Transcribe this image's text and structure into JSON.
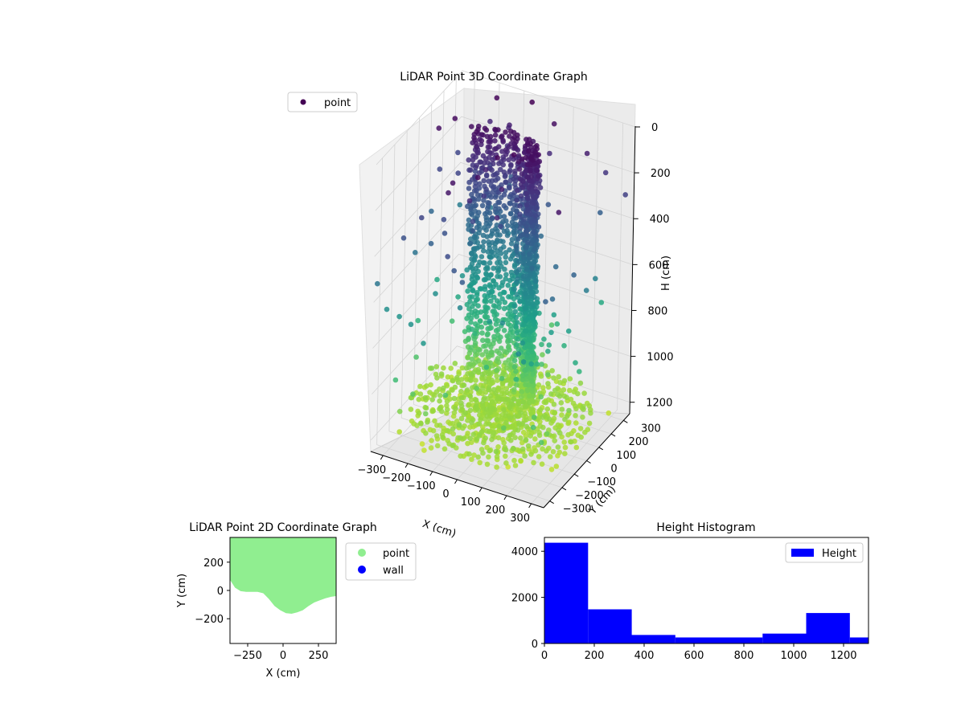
{
  "chart_data": [
    {
      "type": "scatter",
      "title": "LiDAR Point 3D Coordinate Graph",
      "xlabel": "X (cm)",
      "ylabel": "Y (cm)",
      "zlabel": "H (cm)",
      "x_ticks": [
        "−300",
        "−200",
        "−100",
        "0",
        "100",
        "200",
        "300"
      ],
      "y_ticks": [
        "−300",
        "−200",
        "−100",
        "0",
        "100",
        "200",
        "300"
      ],
      "z_ticks": [
        "0",
        "200",
        "400",
        "600",
        "800",
        "1000",
        "1200"
      ],
      "xlim": [
        -350,
        350
      ],
      "ylim": [
        -350,
        350
      ],
      "zlim": [
        0,
        1250
      ],
      "z_inverted": true,
      "legend": {
        "position": "top-left",
        "entries": [
          {
            "label": "point",
            "color": "#440154"
          }
        ]
      },
      "colormap": "viridis",
      "grid": true
    },
    {
      "type": "scatter",
      "title": "LiDAR Point 2D Coordinate Graph",
      "xlabel": "X (cm)",
      "ylabel": "Y (cm)",
      "x_ticks": [
        "−250",
        "0",
        "250"
      ],
      "y_ticks": [
        "200",
        "0",
        "−200"
      ],
      "xlim": [
        -375,
        375
      ],
      "ylim": [
        -375,
        375
      ],
      "series": [
        {
          "name": "point",
          "color": "#90ee90"
        },
        {
          "name": "wall",
          "color": "#0000ff"
        }
      ],
      "boundary": {
        "x": [
          -375,
          -340,
          -300,
          -260,
          -220,
          -180,
          -140,
          -100,
          -60,
          -20,
          20,
          60,
          100,
          140,
          180,
          220,
          260,
          300,
          340,
          375
        ],
        "y": [
          75,
          20,
          -5,
          -10,
          -10,
          -10,
          -20,
          -60,
          -110,
          -140,
          -160,
          -165,
          -155,
          -140,
          -110,
          -85,
          -70,
          -55,
          -45,
          -40
        ]
      },
      "legend": {
        "position": "outside-right"
      }
    },
    {
      "type": "bar",
      "title": "Height Histogram",
      "xlabel": "",
      "ylabel": "",
      "bin_edges": [
        0,
        175,
        350,
        525,
        700,
        875,
        1050,
        1225,
        1300
      ],
      "values": [
        4370,
        1480,
        370,
        260,
        260,
        430,
        1320,
        260
      ],
      "x_ticks": [
        "0",
        "200",
        "400",
        "600",
        "800",
        "1000",
        "1200"
      ],
      "y_ticks": [
        "0",
        "2000",
        "4000"
      ],
      "xlim": [
        0,
        1300
      ],
      "ylim": [
        0,
        4600
      ],
      "series": [
        {
          "name": "Height",
          "color": "#0000ff"
        }
      ],
      "legend": {
        "position": "top-right"
      }
    }
  ]
}
